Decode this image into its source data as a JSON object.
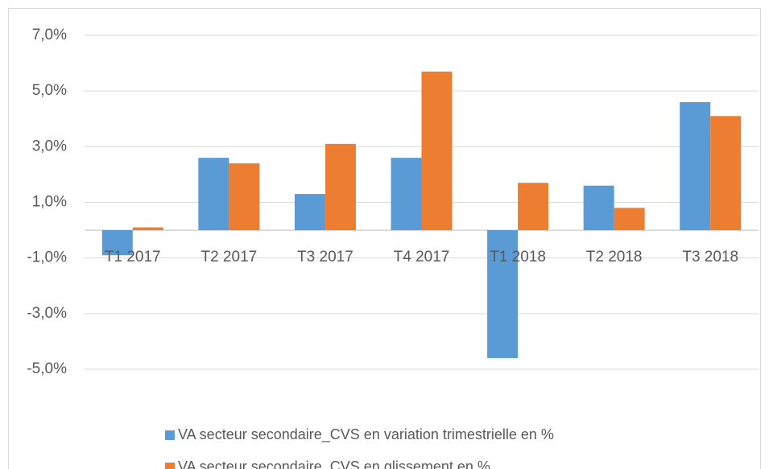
{
  "chart_data": {
    "type": "bar",
    "categories": [
      "T1 2017",
      "T2 2017",
      "T3 2017",
      "T4 2017",
      "T1 2018",
      "T2 2018",
      "T3 2018"
    ],
    "series": [
      {
        "name": "VA secteur secondaire_CVS en variation trimestrielle en %",
        "color": "#5b9bd5",
        "values": [
          -0.9,
          2.6,
          1.3,
          2.6,
          -4.6,
          1.6,
          4.6
        ]
      },
      {
        "name": "VA secteur secondaire_CVS en glissement en %",
        "color": "#ed7d31",
        "values": [
          0.1,
          2.4,
          3.1,
          5.7,
          1.7,
          0.8,
          4.1
        ]
      }
    ],
    "ylim": [
      -5,
      7
    ],
    "yticks": [
      {
        "value": -5,
        "label": "-5,0%"
      },
      {
        "value": -3,
        "label": "-3,0%"
      },
      {
        "value": -1,
        "label": "-1,0%"
      },
      {
        "value": 1,
        "label": "1,0%"
      },
      {
        "value": 3,
        "label": "3,0%"
      },
      {
        "value": 5,
        "label": "5,0%"
      },
      {
        "value": 7,
        "label": "7,0%"
      }
    ],
    "grid": true,
    "legend": "bottom"
  }
}
